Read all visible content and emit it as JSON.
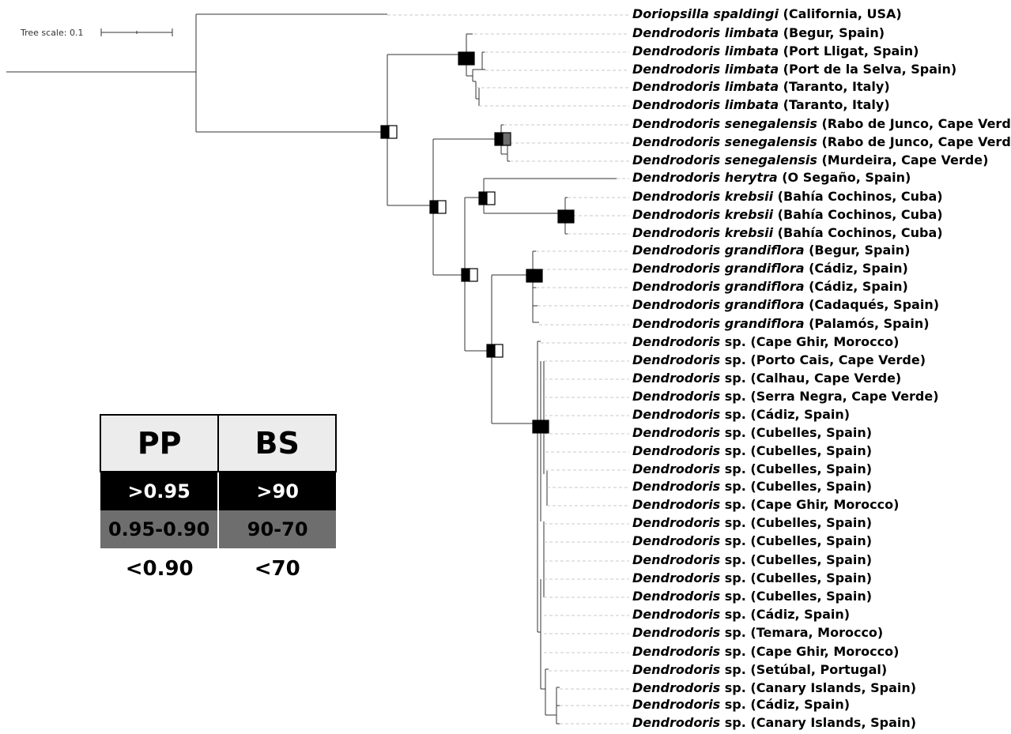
{
  "scale": {
    "label": "Tree scale: 0.1",
    "value": 0.1
  },
  "legend": {
    "headers": [
      "PP",
      "BS"
    ],
    "rows": [
      {
        "pp": ">0.95",
        "bs": ">90",
        "color": "#000000"
      },
      {
        "pp": "0.95-0.90",
        "bs": "90-70",
        "color": "#6e6e6e"
      },
      {
        "pp": "<0.90",
        "bs": "<70",
        "color": "#ffffff"
      }
    ]
  },
  "tips": [
    {
      "genus": "Doriopsilla",
      "species": "spaldingi",
      "locality": "(California, USA)"
    },
    {
      "genus": "Dendrodoris",
      "species": "limbata",
      "locality": "(Begur, Spain)"
    },
    {
      "genus": "Dendrodoris",
      "species": "limbata",
      "locality": "(Port Lligat, Spain)"
    },
    {
      "genus": "Dendrodoris",
      "species": "limbata",
      "locality": "(Port de la Selva, Spain)"
    },
    {
      "genus": "Dendrodoris",
      "species": "limbata",
      "locality": "(Taranto, Italy)"
    },
    {
      "genus": "Dendrodoris",
      "species": "limbata",
      "locality": "(Taranto, Italy)"
    },
    {
      "genus": "Dendrodoris",
      "species": "senegalensis",
      "locality": "(Rabo de Junco, Cape Verde)"
    },
    {
      "genus": "Dendrodoris",
      "species": "senegalensis",
      "locality": "(Rabo de Junco, Cape Verde)"
    },
    {
      "genus": "Dendrodoris",
      "species": "senegalensis",
      "locality": "(Murdeira, Cape Verde)"
    },
    {
      "genus": "Dendrodoris",
      "species": "herytra",
      "locality": "(O Segaño, Spain)"
    },
    {
      "genus": "Dendrodoris",
      "species": "krebsii",
      "locality": "(Bahía Cochinos, Cuba)"
    },
    {
      "genus": "Dendrodoris",
      "species": "krebsii",
      "locality": "(Bahía Cochinos, Cuba)"
    },
    {
      "genus": "Dendrodoris",
      "species": "krebsii",
      "locality": "(Bahía Cochinos, Cuba)"
    },
    {
      "genus": "Dendrodoris",
      "species": "grandiflora",
      "locality": "(Begur, Spain)"
    },
    {
      "genus": "Dendrodoris",
      "species": "grandiflora",
      "locality": "(Cádiz, Spain)"
    },
    {
      "genus": "Dendrodoris",
      "species": "grandiflora",
      "locality": "(Cádiz, Spain)"
    },
    {
      "genus": "Dendrodoris",
      "species": "grandiflora",
      "locality": "(Cadaqués, Spain)"
    },
    {
      "genus": "Dendrodoris",
      "species": "grandiflora",
      "locality": "(Palamós, Spain)"
    },
    {
      "genus": "Dendrodoris",
      "species": "sp.",
      "locality": "(Cape Ghir, Morocco)"
    },
    {
      "genus": "Dendrodoris",
      "species": "sp.",
      "locality": "(Porto Cais, Cape Verde)"
    },
    {
      "genus": "Dendrodoris",
      "species": "sp.",
      "locality": "(Calhau, Cape Verde)"
    },
    {
      "genus": "Dendrodoris",
      "species": "sp.",
      "locality": "(Serra Negra, Cape Verde)"
    },
    {
      "genus": "Dendrodoris",
      "species": "sp.",
      "locality": "(Cádiz, Spain)"
    },
    {
      "genus": "Dendrodoris",
      "species": "sp.",
      "locality": "(Cubelles, Spain)"
    },
    {
      "genus": "Dendrodoris",
      "species": "sp.",
      "locality": "(Cubelles, Spain)"
    },
    {
      "genus": "Dendrodoris",
      "species": "sp.",
      "locality": "(Cubelles, Spain)"
    },
    {
      "genus": "Dendrodoris",
      "species": "sp.",
      "locality": "(Cubelles, Spain)"
    },
    {
      "genus": "Dendrodoris",
      "species": "sp.",
      "locality": "(Cape Ghir, Morocco)"
    },
    {
      "genus": "Dendrodoris",
      "species": "sp.",
      "locality": "(Cubelles, Spain)"
    },
    {
      "genus": "Dendrodoris",
      "species": "sp.",
      "locality": "(Cubelles, Spain)"
    },
    {
      "genus": "Dendrodoris",
      "species": "sp.",
      "locality": "(Cubelles, Spain)"
    },
    {
      "genus": "Dendrodoris",
      "species": "sp.",
      "locality": "(Cubelles, Spain)"
    },
    {
      "genus": "Dendrodoris",
      "species": "sp.",
      "locality": "(Cubelles, Spain)"
    },
    {
      "genus": "Dendrodoris",
      "species": "sp.",
      "locality": "(Cádiz, Spain)"
    },
    {
      "genus": "Dendrodoris",
      "species": "sp.",
      "locality": "(Temara, Morocco)"
    },
    {
      "genus": "Dendrodoris",
      "species": "sp.",
      "locality": "(Cape Ghir, Morocco)"
    },
    {
      "genus": "Dendrodoris",
      "species": "sp.",
      "locality": "(Setúbal, Portugal)"
    },
    {
      "genus": "Dendrodoris",
      "species": "sp.",
      "locality": "(Canary Islands, Spain)"
    },
    {
      "genus": "Dendrodoris",
      "species": "sp.",
      "locality": "(Cádiz, Spain)"
    },
    {
      "genus": "Dendrodoris",
      "species": "sp.",
      "locality": "(Canary Islands, Spain)"
    }
  ]
}
